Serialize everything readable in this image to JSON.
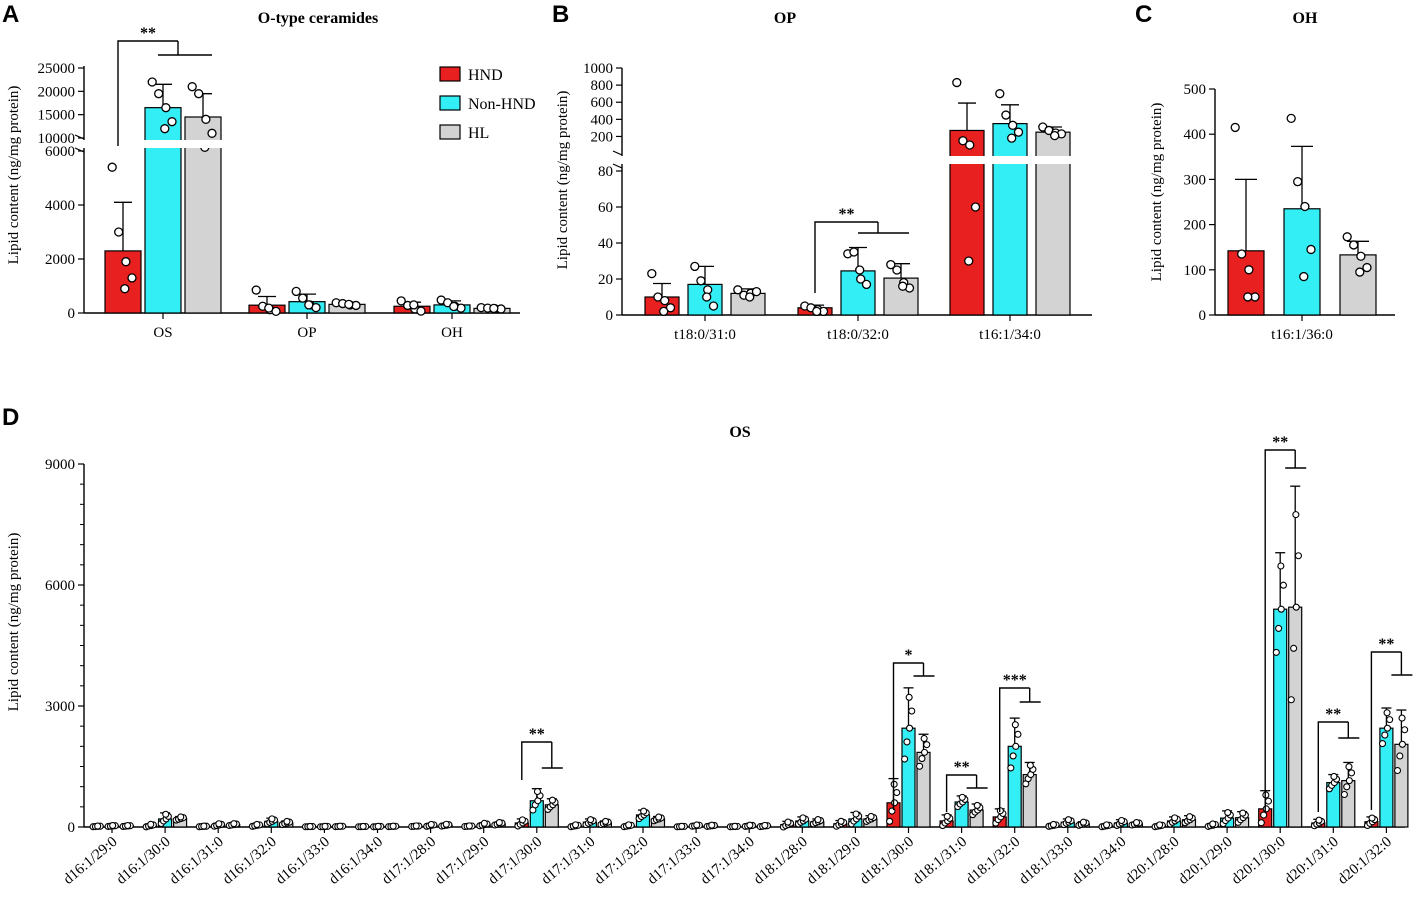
{
  "colors": {
    "HND": "#e8201f",
    "Non-HND": "#33eef5",
    "HL": "#d3d3d3"
  },
  "chart_data": [
    {
      "panel": "A",
      "type": "bar",
      "title": "O-type ceramides",
      "ylabel": "Lipid content (ng/mg protein)",
      "xlabel": "",
      "categories": [
        "OS",
        "OP",
        "OH"
      ],
      "axis_break": {
        "lower": [
          0,
          6000
        ],
        "upper": [
          6500,
          25000
        ]
      },
      "yticks_lower": [
        "0",
        "2000",
        "4000",
        "6000"
      ],
      "yticks_upper": [
        "10000",
        "15000",
        "20000",
        "25000"
      ],
      "series": [
        {
          "name": "HND",
          "values": [
            2300,
            290,
            250
          ],
          "errors": [
            1800,
            320,
            150
          ],
          "points": [
            [
              5400,
              3000,
              1900,
              1300,
              900
            ],
            [
              850,
              250,
              120,
              60,
              180
            ],
            [
              450,
              280,
              150,
              70,
              300
            ]
          ]
        },
        {
          "name": "Non-HND",
          "values": [
            16500,
            420,
            300
          ],
          "errors": [
            5000,
            280,
            150
          ],
          "points": [
            [
              22000,
              19500,
              16500,
              13500,
              12000
            ],
            [
              800,
              550,
              300,
              200,
              300
            ],
            [
              480,
              380,
              250,
              180,
              240
            ]
          ]
        },
        {
          "name": "HL",
          "values": [
            14500,
            320,
            170
          ],
          "errors": [
            5000,
            80,
            40
          ],
          "points": [
            [
              21000,
              19500,
              14000,
              11000,
              8000
            ],
            [
              380,
              350,
              300,
              280,
              320
            ],
            [
              200,
              180,
              160,
              150,
              170
            ]
          ]
        }
      ],
      "significance": [
        {
          "label": "**",
          "category": "OS"
        }
      ],
      "legend": [
        "HND",
        "Non-HND",
        "HL"
      ]
    },
    {
      "panel": "B",
      "type": "bar",
      "title": "OP",
      "ylabel": "Lipid content (ng/mg protein)",
      "categories": [
        "t18:0/31:0",
        "t18:0/32:0",
        "t16:1/34:0"
      ],
      "axis_break": {
        "lower": [
          0,
          80
        ],
        "upper": [
          100,
          1000
        ]
      },
      "yticks_lower": [
        "0",
        "20",
        "40",
        "60",
        "80"
      ],
      "yticks_upper": [
        "200",
        "400",
        "600",
        "800",
        "1000"
      ],
      "series": [
        {
          "name": "HND",
          "values": [
            10,
            4,
            270
          ],
          "errors": [
            7.5,
            1.5,
            320
          ],
          "points": [
            [
              23,
              10,
              8,
              4,
              2
            ],
            [
              5,
              4,
              3,
              2,
              2
            ],
            [
              830,
              150,
              100,
              60,
              30
            ]
          ]
        },
        {
          "name": "Non-HND",
          "values": [
            17,
            24.5,
            350
          ],
          "errors": [
            10,
            13,
            220
          ],
          "points": [
            [
              27,
              19,
              14,
              5,
              10
            ],
            [
              34,
              35,
              20,
              17,
              25
            ],
            [
              700,
              450,
              330,
              250,
              180
            ]
          ]
        },
        {
          "name": "HL",
          "values": [
            12,
            20.5,
            250
          ],
          "errors": [
            2.5,
            8,
            60
          ],
          "points": [
            [
              14,
              11,
              12,
              13,
              10
            ],
            [
              28,
              25,
              18,
              15,
              16
            ],
            [
              310,
              270,
              240,
              230,
              210
            ]
          ]
        }
      ],
      "significance": [
        {
          "label": "**",
          "category": "t18:0/32:0"
        }
      ]
    },
    {
      "panel": "C",
      "type": "bar",
      "title": "OH",
      "ylabel": "Lipid content (ng/mg protein)",
      "categories": [
        "t16:1/36:0"
      ],
      "ylim": [
        0,
        500
      ],
      "yticks": [
        "0",
        "100",
        "200",
        "300",
        "400",
        "500"
      ],
      "series": [
        {
          "name": "HND",
          "values": [
            142
          ],
          "errors": [
            158
          ],
          "points": [
            [
              415,
              135,
              100,
              40,
              40
            ]
          ]
        },
        {
          "name": "Non-HND",
          "values": [
            235
          ],
          "errors": [
            138
          ],
          "points": [
            [
              435,
              295,
              240,
              145,
              85
            ]
          ]
        },
        {
          "name": "HL",
          "values": [
            133
          ],
          "errors": [
            30
          ],
          "points": [
            [
              173,
              155,
              130,
              105,
              95
            ]
          ]
        }
      ]
    },
    {
      "panel": "D",
      "type": "bar",
      "title": "OS",
      "ylabel": "Lipid content (ng/mg protein)",
      "ylim": [
        0,
        9000
      ],
      "yticks": [
        "0",
        "3000",
        "6000",
        "9000"
      ],
      "categories": [
        "d16:1/29:0",
        "d16:1/30:0",
        "d16:1/31:0",
        "d16:1/32:0",
        "d16:1/33:0",
        "d16:1/34:0",
        "d17:1/28:0",
        "d17:1/29:0",
        "d17:1/30:0",
        "d17:1/31:0",
        "d17:1/32:0",
        "d17:1/33:0",
        "d17:1/34:0",
        "d18:1/28:0",
        "d18:1/29:0",
        "d18:1/30:0",
        "d18:1/31:0",
        "d18:1/32:0",
        "d18:1/33:0",
        "d18:1/34:0",
        "d20:1/28:0",
        "d20:1/29:0",
        "d20:1/30:0",
        "d20:1/31:0",
        "d20:1/32:0"
      ],
      "series": [
        {
          "name": "HND",
          "values": [
            15,
            35,
            15,
            40,
            10,
            10,
            20,
            20,
            100,
            30,
            30,
            12,
            12,
            60,
            80,
            600,
            150,
            250,
            40,
            30,
            30,
            45,
            450,
            100,
            130
          ],
          "errors": [
            10,
            40,
            10,
            30,
            5,
            5,
            10,
            10,
            100,
            30,
            30,
            8,
            8,
            80,
            80,
            600,
            150,
            200,
            30,
            30,
            30,
            40,
            450,
            90,
            120
          ]
        },
        {
          "name": "Non-HND",
          "values": [
            25,
            200,
            50,
            140,
            12,
            12,
            40,
            60,
            650,
            120,
            300,
            35,
            30,
            150,
            200,
            2450,
            620,
            2000,
            120,
            100,
            150,
            220,
            5400,
            1100,
            2450
          ],
          "errors": [
            15,
            150,
            40,
            80,
            8,
            8,
            30,
            40,
            300,
            80,
            120,
            20,
            20,
            100,
            160,
            1000,
            150,
            700,
            80,
            80,
            100,
            180,
            1400,
            200,
            500
          ]
        },
        {
          "name": "HL",
          "values": [
            25,
            210,
            60,
            100,
            15,
            15,
            45,
            80,
            550,
            100,
            200,
            30,
            25,
            130,
            200,
            1850,
            420,
            1300,
            80,
            80,
            180,
            230,
            5450,
            1150,
            2050
          ],
          "errors": [
            15,
            50,
            30,
            50,
            8,
            8,
            30,
            40,
            150,
            50,
            60,
            20,
            20,
            70,
            80,
            450,
            150,
            300,
            50,
            40,
            100,
            150,
            3000,
            450,
            850
          ]
        }
      ],
      "significance": [
        {
          "label": "**",
          "category": "d17:1/30:0"
        },
        {
          "label": "*",
          "category": "d18:1/30:0"
        },
        {
          "label": "**",
          "category": "d18:1/31:0"
        },
        {
          "label": "***",
          "category": "d18:1/32:0"
        },
        {
          "label": "**",
          "category": "d20:1/30:0"
        },
        {
          "label": "**",
          "category": "d20:1/31:0"
        },
        {
          "label": "**",
          "category": "d20:1/32:0"
        }
      ]
    }
  ]
}
